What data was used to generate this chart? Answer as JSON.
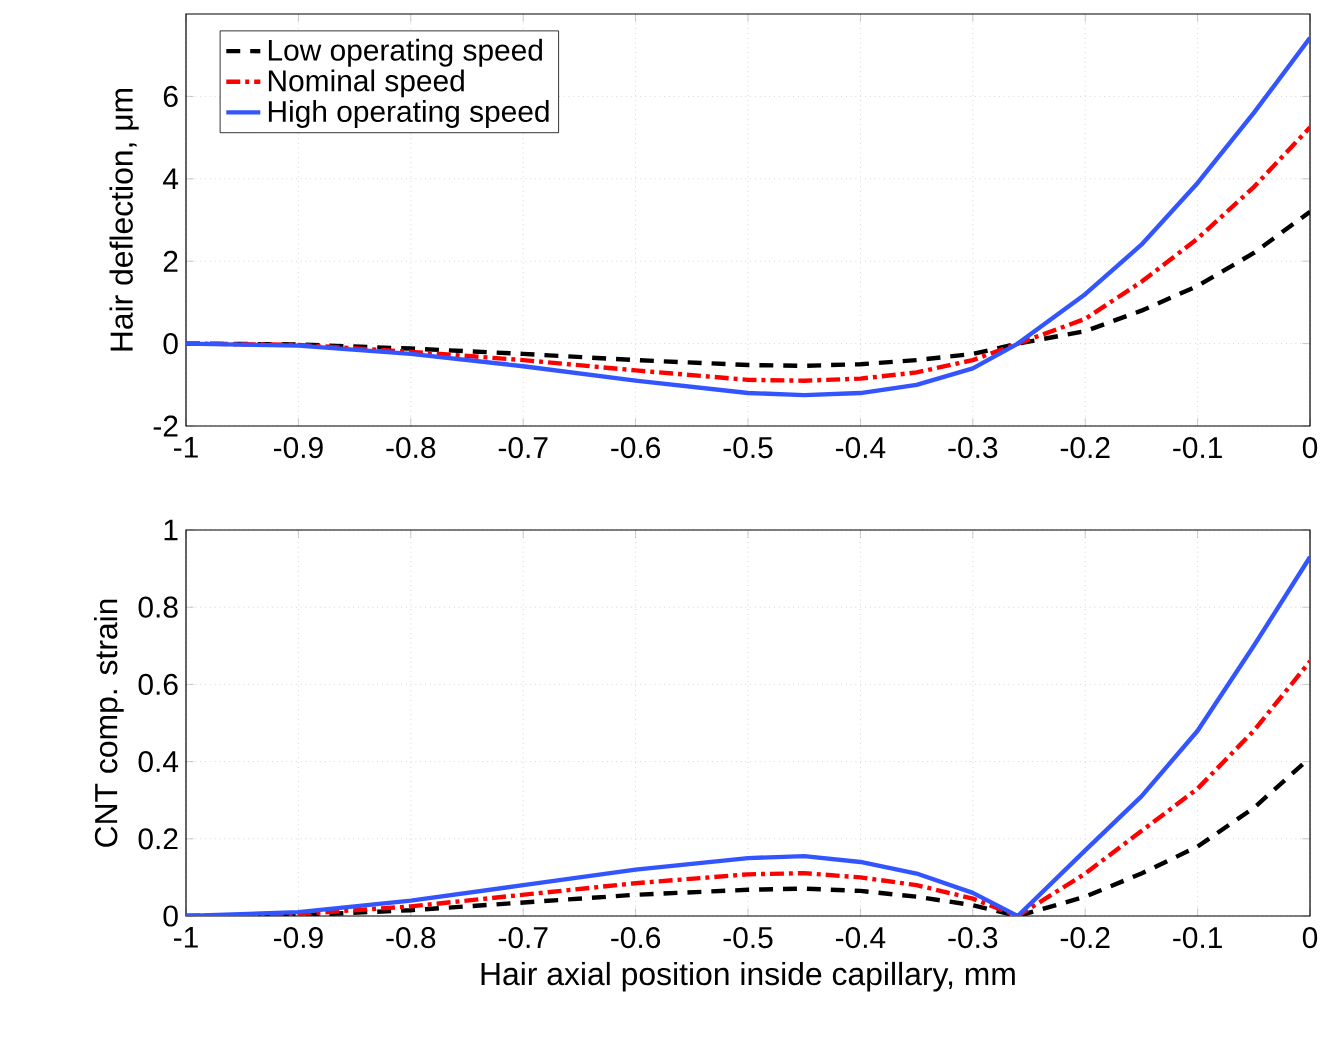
{
  "chart_data": [
    {
      "type": "line",
      "ylabel": "Hair deflection, μm",
      "x": [
        -1,
        -0.9,
        -0.8,
        -0.7,
        -0.6,
        -0.5,
        -0.45,
        -0.4,
        -0.35,
        -0.3,
        -0.26,
        -0.2,
        -0.15,
        -0.1,
        -0.05,
        0
      ],
      "series": [
        {
          "name": "Low operating speed",
          "color": "#000000",
          "line_style": "dashed",
          "values": [
            0,
            -0.02,
            -0.12,
            -0.25,
            -0.4,
            -0.52,
            -0.54,
            -0.5,
            -0.4,
            -0.25,
            0,
            0.3,
            0.8,
            1.4,
            2.2,
            3.2
          ]
        },
        {
          "name": "Nominal speed",
          "color": "#ff0000",
          "line_style": "dashdot",
          "values": [
            0,
            -0.03,
            -0.2,
            -0.4,
            -0.65,
            -0.88,
            -0.9,
            -0.85,
            -0.7,
            -0.4,
            0,
            0.6,
            1.5,
            2.55,
            3.8,
            5.25
          ]
        },
        {
          "name": "High operating speed",
          "color": "#3355ff",
          "line_style": "solid",
          "values": [
            0,
            -0.05,
            -0.25,
            -0.55,
            -0.9,
            -1.2,
            -1.25,
            -1.2,
            -1.0,
            -0.6,
            0,
            1.2,
            2.4,
            3.9,
            5.6,
            7.42
          ]
        }
      ],
      "xlim": [
        -1,
        0
      ],
      "xticks": [
        -1,
        -0.9,
        -0.8,
        -0.7,
        -0.6,
        -0.5,
        -0.4,
        -0.3,
        -0.2,
        -0.1,
        0
      ],
      "ylim": [
        -2,
        8
      ],
      "yticks": [
        -2,
        0,
        2,
        4,
        6
      ],
      "grid": true,
      "legend": "top left"
    },
    {
      "type": "line",
      "xlabel": "Hair axial position inside capillary, mm",
      "ylabel": "CNT comp. strain",
      "x": [
        -1,
        -0.9,
        -0.8,
        -0.7,
        -0.6,
        -0.5,
        -0.45,
        -0.4,
        -0.35,
        -0.3,
        -0.26,
        -0.2,
        -0.15,
        -0.1,
        -0.05,
        0
      ],
      "series": [
        {
          "color": "#000000",
          "line_style": "dashed",
          "values": [
            0,
            0.002,
            0.015,
            0.035,
            0.055,
            0.068,
            0.071,
            0.065,
            0.05,
            0.028,
            0,
            0.05,
            0.11,
            0.18,
            0.28,
            0.41
          ]
        },
        {
          "color": "#ff0000",
          "line_style": "dashdot",
          "values": [
            0,
            0.005,
            0.025,
            0.055,
            0.085,
            0.108,
            0.111,
            0.1,
            0.08,
            0.045,
            0,
            0.11,
            0.22,
            0.33,
            0.48,
            0.66
          ]
        },
        {
          "color": "#3355ff",
          "line_style": "solid",
          "values": [
            0,
            0.01,
            0.04,
            0.08,
            0.12,
            0.15,
            0.155,
            0.14,
            0.11,
            0.06,
            0,
            0.17,
            0.31,
            0.48,
            0.7,
            0.93
          ]
        }
      ],
      "xlim": [
        -1,
        0
      ],
      "xticks": [
        -1,
        -0.9,
        -0.8,
        -0.7,
        -0.6,
        -0.5,
        -0.4,
        -0.3,
        -0.2,
        -0.1,
        0
      ],
      "ylim": [
        0,
        1
      ],
      "yticks": [
        0,
        0.2,
        0.4,
        0.6,
        0.8,
        1
      ],
      "grid": true,
      "legend": false
    }
  ]
}
